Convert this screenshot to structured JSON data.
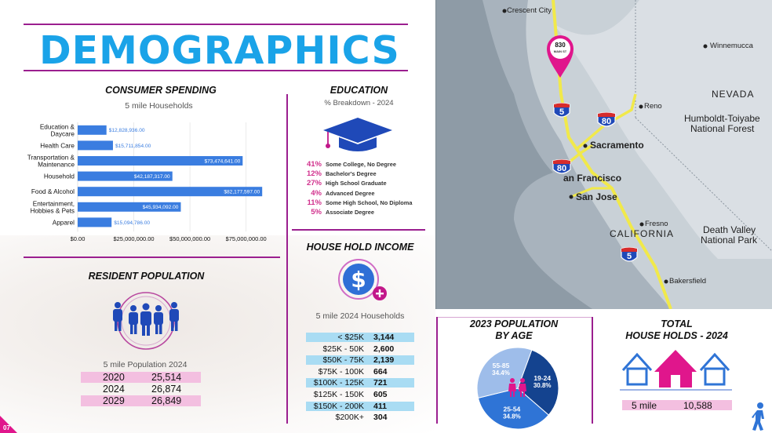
{
  "header": {
    "title": "DEMOGRAPHICS",
    "page_number": "07"
  },
  "consumer_spending": {
    "heading": "CONSUMER SPENDING",
    "subheading": "5 mile Households",
    "chart_data": {
      "type": "bar",
      "orientation": "horizontal",
      "categories": [
        "Education & Daycare",
        "Health Care",
        "Transportation & Maintenance",
        "Household",
        "Food & Alcohol",
        "Entertainment, Hobbies & Pets",
        "Apparel"
      ],
      "category_lines": [
        [
          "Education &",
          "Daycare"
        ],
        [
          "Health Care"
        ],
        [
          "Transportation &",
          "Maintenance"
        ],
        [
          "Household"
        ],
        [
          "Food & Alcohol"
        ],
        [
          "Entertainment,",
          "Hobbies & Pets"
        ],
        [
          "Apparel"
        ]
      ],
      "values": [
        12828936,
        15711854,
        73474641,
        42187317,
        82177597,
        45934092,
        15094786
      ],
      "value_labels": [
        "$12,828,936.00",
        "$15,711,854.00",
        "$73,474,641.00",
        "$42,187,317.00",
        "$82,177,597.00",
        "$45,934,092.00",
        "$15,094,786.00"
      ],
      "xlim": [
        0,
        87000000
      ],
      "ticks": [
        0,
        25000000,
        50000000,
        75000000
      ],
      "tick_labels": [
        "$0.00",
        "$25,000,000.00",
        "$50,000,000.00",
        "$75,000,000.00"
      ],
      "bar_color": "#3a7de0"
    }
  },
  "education": {
    "heading": "EDUCATION",
    "subheading": "% Breakdown - 2024",
    "items": [
      {
        "pct": "41%",
        "label": "Some College, No Degree"
      },
      {
        "pct": "12%",
        "label": "Bachelor's Degree"
      },
      {
        "pct": "27%",
        "label": "High School Graduate"
      },
      {
        "pct": "4%",
        "label": "Advanced Degree"
      },
      {
        "pct": "11%",
        "label": "Some High School, No Diploma"
      },
      {
        "pct": "5%",
        "label": "Associate Degree"
      }
    ]
  },
  "resident_population": {
    "heading": "RESIDENT POPULATION",
    "subheading": "5 mile Population 2024",
    "rows": [
      {
        "year": "2020",
        "value": "25,514"
      },
      {
        "year": "2024",
        "value": "26,874"
      },
      {
        "year": "2029",
        "value": "26,849"
      }
    ]
  },
  "household_income": {
    "heading": "HOUSE HOLD INCOME",
    "subheading": "5 mile 2024 Households",
    "rows": [
      {
        "range": "< $25K",
        "value": "3,144"
      },
      {
        "range": "$25K - 50K",
        "value": "2,600"
      },
      {
        "range": "$50K - 75K",
        "value": "2,139"
      },
      {
        "range": "$75K - 100K",
        "value": "664"
      },
      {
        "range": "$100K - 125K",
        "value": "721"
      },
      {
        "range": "$125K - 150K",
        "value": "605"
      },
      {
        "range": "$150K - 200K",
        "value": "411"
      },
      {
        "range": "$200K+",
        "value": "304"
      }
    ]
  },
  "population_by_age": {
    "heading_line1": "2023 POPULATION",
    "heading_line2": "BY AGE",
    "chart_data": {
      "type": "pie",
      "slices": [
        {
          "label": "19-24",
          "pct_label": "30.8%",
          "value": 30.8,
          "color": "#14438f"
        },
        {
          "label": "25-54",
          "pct_label": "34.8%",
          "value": 34.8,
          "color": "#2f74d6"
        },
        {
          "label": "55-85",
          "pct_label": "34.4%",
          "value": 34.4,
          "color": "#9ebdea"
        }
      ]
    }
  },
  "total_households": {
    "heading_line1": "TOTAL",
    "heading_line2": "HOUSE HOLDS - 2024",
    "radius": "5 mile",
    "value": "10,588"
  },
  "map": {
    "pin_line1": "830",
    "pin_line2": "MAIN ST",
    "labels": {
      "crescent_city": "Crescent City",
      "winnemucca": "Winnemucca",
      "nevada": "NEVADA",
      "reno": "Reno",
      "humboldt": "Humboldt-Toiyabe",
      "humboldt2": "National Forest",
      "sacramento": "Sacramento",
      "san_francisco": "an Francisco",
      "san_jose": "San Jose",
      "fresno": "Fresno",
      "california": "CALIFORNIA",
      "death_valley": "Death Valley",
      "death_valley2": "National Park",
      "bakersfield": "Bakersfield"
    },
    "shields": {
      "i5_north": "5",
      "i80_east": "80",
      "i80_west": "80",
      "i5_south": "5"
    }
  },
  "colors": {
    "accent": "#1aa3e8",
    "brand": "#9b1f8f",
    "pink": "#e0168c",
    "blue": "#3a7de0"
  }
}
